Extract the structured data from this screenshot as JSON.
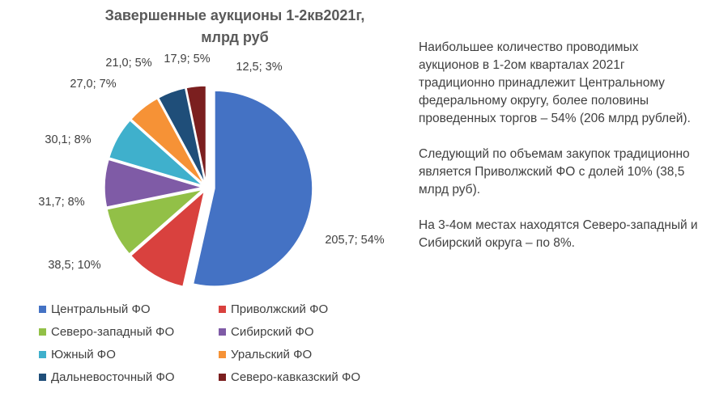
{
  "chart_data": {
    "type": "pie",
    "title": "Завершенные аукционы 1-2кв2021г,\nмлрд руб",
    "categories": [
      "Центральный ФО",
      "Приволжский ФО",
      "Северо-западный ФО",
      "Сибирский ФО",
      "Южный ФО",
      "Уральский ФО",
      "Дальневосточный ФО",
      "Северо-кавказский ФО"
    ],
    "values": [
      205.7,
      38.5,
      31.7,
      30.1,
      27.0,
      21.0,
      17.9,
      12.5
    ],
    "percents": [
      54,
      10,
      8,
      8,
      7,
      5,
      5,
      3
    ],
    "data_labels": [
      "205,7; 54%",
      "38,5; 10%",
      "31,7; 8%",
      "30,1; 8%",
      "27,0; 7%",
      "21,0; 5%",
      "17,9; 5%",
      "12,5; 3%"
    ],
    "colors": [
      "#4472C4",
      "#D9413E",
      "#92C047",
      "#7F5BA6",
      "#3FB0CC",
      "#F69236",
      "#1F4E79",
      "#7B1F1F"
    ],
    "exploded": true,
    "legend_position": "bottom"
  },
  "side_text": {
    "p1": "Наибольшее количество проводимых аукционов в 1-2ом кварталах 2021г традиционно принадлежит Центральному федеральному округу, более половины проведенных торгов – 54% (206 млрд рублей).",
    "p2": "Следующий по объемам закупок традиционно является Приволжский ФО с долей 10% (38,5 млрд руб).",
    "p3": "На 3-4ом местах находятся Северо-западный и Сибирский округа – по 8%."
  }
}
